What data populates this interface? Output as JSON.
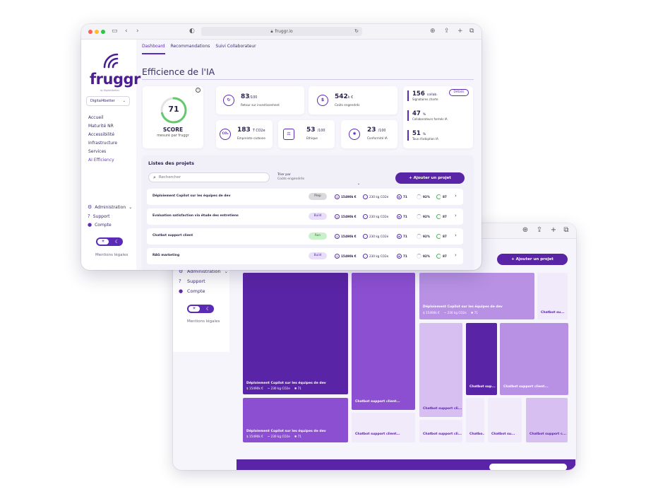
{
  "front": {
    "url": "fruggr.io",
    "brand": {
      "name": "fruggr",
      "tagline": "by Digital4better"
    },
    "org_select": "Digital4better",
    "sidebar_menu": [
      "Accueil",
      "Maturité NR",
      "Accessibilité",
      "Infrastructure",
      "Services",
      "AI Efficiency"
    ],
    "sidebar_footer": {
      "admin": "Administration",
      "support": "Support",
      "account": "Compte",
      "legal": "Mentions légales"
    },
    "tabs": [
      "Dashboard",
      "Recommandations",
      "Suivi Collaborateur"
    ],
    "page_title": "Efficience de l'IA",
    "score": {
      "value": "71",
      "label": "SCORE",
      "sub": "mesuré par fruggr",
      "progress": 0.71
    },
    "kpis": [
      {
        "icon": "roi",
        "value": "83",
        "unit": "/100",
        "label": "Retour sur investissement"
      },
      {
        "icon": "euro",
        "value": "542",
        "unit": "k €",
        "label": "Coûts engendrés"
      },
      {
        "icon": "co2",
        "value": "183",
        "unit": "T CO2e",
        "label": "Empreinte carbone"
      },
      {
        "icon": "ethics",
        "value": "53",
        "unit": "/100",
        "label": "Ethique"
      },
      {
        "icon": "conformity",
        "value": "23",
        "unit": "/100",
        "label": "Conformité IA"
      }
    ],
    "side_stats": {
      "details": "Détails",
      "items": [
        {
          "value": "156",
          "unit": "collab.",
          "label": "Signataires charte"
        },
        {
          "value": "47",
          "unit": "%",
          "label": "Collaborateurs formés IA"
        },
        {
          "value": "51",
          "unit": "%",
          "label": "Taux d'adoption IA"
        }
      ]
    },
    "projects": {
      "title": "Listes des projets",
      "search_placeholder": "Rechercher",
      "sort_label": "Trier par",
      "sort_value": "Coûts engendrés",
      "add_button": "+ Ajouter un projet",
      "rows": [
        {
          "name": "Déploiement Copilot sur les équipes de dev",
          "status": "Prep",
          "cost": "15490k €",
          "carbon": "230 kg CO2e",
          "score": "71",
          "pct": "92%",
          "green": "87"
        },
        {
          "name": "Evaluation satisfaction via étude des entretiens",
          "status": "Build",
          "cost": "15490k €",
          "carbon": "230 kg CO2e",
          "score": "71",
          "pct": "92%",
          "green": "87"
        },
        {
          "name": "Chatbot support client",
          "status": "Run",
          "cost": "15490k €",
          "carbon": "230 kg CO2e",
          "score": "71",
          "pct": "92%",
          "green": "87"
        },
        {
          "name": "RAG marketing",
          "status": "Build",
          "cost": "15490k €",
          "carbon": "230 kg CO2e",
          "score": "71",
          "pct": "92%",
          "green": "87"
        }
      ]
    }
  },
  "back": {
    "add_button": "+ Ajouter un projet",
    "sidebar_footer": {
      "admin": "Administration",
      "support": "Support",
      "account": "Compte",
      "legal": "Mentions légales"
    },
    "tiles": [
      {
        "name": "Déploiement Copilot sur les équipes de dev",
        "cost": "15490k €",
        "carbon": "230 kg CO2e",
        "score": "71",
        "color": "#5a24a6"
      },
      {
        "name": "Déploiement Copilot sur les équipes de dev",
        "cost": "15490k €",
        "carbon": "230 kg CO2e",
        "score": "71",
        "color": "#8c4fd1"
      },
      {
        "name": "Chatbot support client...",
        "color": "#8c4fd1"
      },
      {
        "name": "Déploiement Copilot sur les équipes de dev",
        "cost": "15490k €",
        "carbon": "230 kg CO2e",
        "score": "71",
        "color": "#b891e4"
      },
      {
        "name": "Chatbot su...",
        "color": "#f1eafb"
      },
      {
        "name": "Chatbot support cli...",
        "color": "#d7bff2"
      },
      {
        "name": "Chatbot sup...",
        "color": "#5a24a6"
      },
      {
        "name": "Chatbot support client...",
        "color": "#b891e4"
      },
      {
        "name": "Chatbot support client...",
        "color": "#f1eafb"
      },
      {
        "name": "Chatbot support cli...",
        "color": "#f1eafb"
      },
      {
        "name": "Chatbo...",
        "color": "#f1eafb"
      },
      {
        "name": "Chatbot su...",
        "color": "#f1eafb"
      },
      {
        "name": "Chatbot support c...",
        "color": "#d7bff2"
      }
    ]
  }
}
